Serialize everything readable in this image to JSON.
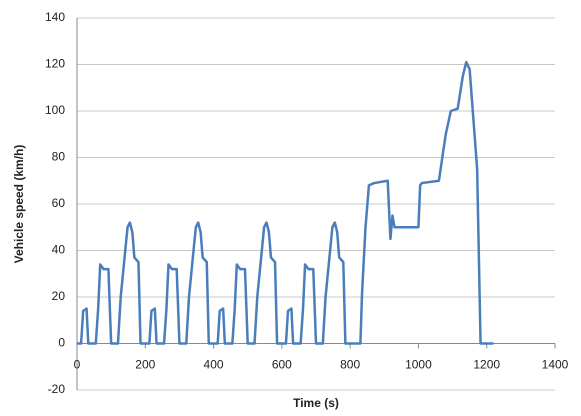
{
  "chart_data": {
    "type": "line",
    "x_label": "Time (s)",
    "y_label": "Vehicle speed (km/h)",
    "xlim": [
      0,
      1400
    ],
    "xticks": [
      0,
      200,
      400,
      600,
      800,
      1000,
      1200,
      1400
    ],
    "ylim": [
      -20,
      140
    ],
    "yticks": [
      -20,
      0,
      20,
      40,
      60,
      80,
      100,
      120,
      140
    ],
    "grid": true,
    "series": [
      {
        "color": "#4a7ebb",
        "x": [
          0,
          12,
          18,
          28,
          33,
          55,
          62,
          68,
          78,
          92,
          100,
          120,
          128,
          138,
          148,
          155,
          162,
          168,
          180,
          186,
          200,
          212,
          218,
          228,
          233,
          255,
          262,
          268,
          278,
          292,
          300,
          320,
          328,
          338,
          348,
          355,
          362,
          368,
          380,
          386,
          400,
          412,
          418,
          428,
          433,
          455,
          462,
          468,
          478,
          492,
          500,
          520,
          528,
          538,
          548,
          555,
          562,
          568,
          580,
          586,
          600,
          612,
          618,
          628,
          633,
          655,
          662,
          668,
          678,
          692,
          700,
          720,
          728,
          738,
          748,
          755,
          762,
          768,
          780,
          786,
          800,
          830,
          835,
          845,
          855,
          870,
          910,
          918,
          924,
          930,
          1000,
          1005,
          1010,
          1060,
          1080,
          1095,
          1115,
          1130,
          1140,
          1150,
          1172,
          1182,
          1220
        ],
        "values": [
          0,
          0,
          14,
          15,
          0,
          0,
          15,
          34,
          32,
          32,
          0,
          0,
          20,
          35,
          50,
          52,
          48,
          37,
          35,
          0,
          0,
          0,
          14,
          15,
          0,
          0,
          15,
          34,
          32,
          32,
          0,
          0,
          20,
          35,
          50,
          52,
          48,
          37,
          35,
          0,
          0,
          0,
          14,
          15,
          0,
          0,
          15,
          34,
          32,
          32,
          0,
          0,
          20,
          35,
          50,
          52,
          48,
          37,
          35,
          0,
          0,
          0,
          14,
          15,
          0,
          0,
          15,
          34,
          32,
          32,
          0,
          0,
          20,
          35,
          50,
          52,
          48,
          37,
          35,
          0,
          0,
          0,
          22,
          50,
          68,
          69,
          70,
          45,
          55,
          50,
          50,
          68,
          69,
          70,
          90,
          100,
          101,
          115,
          121,
          118,
          75,
          0,
          0
        ]
      }
    ]
  }
}
